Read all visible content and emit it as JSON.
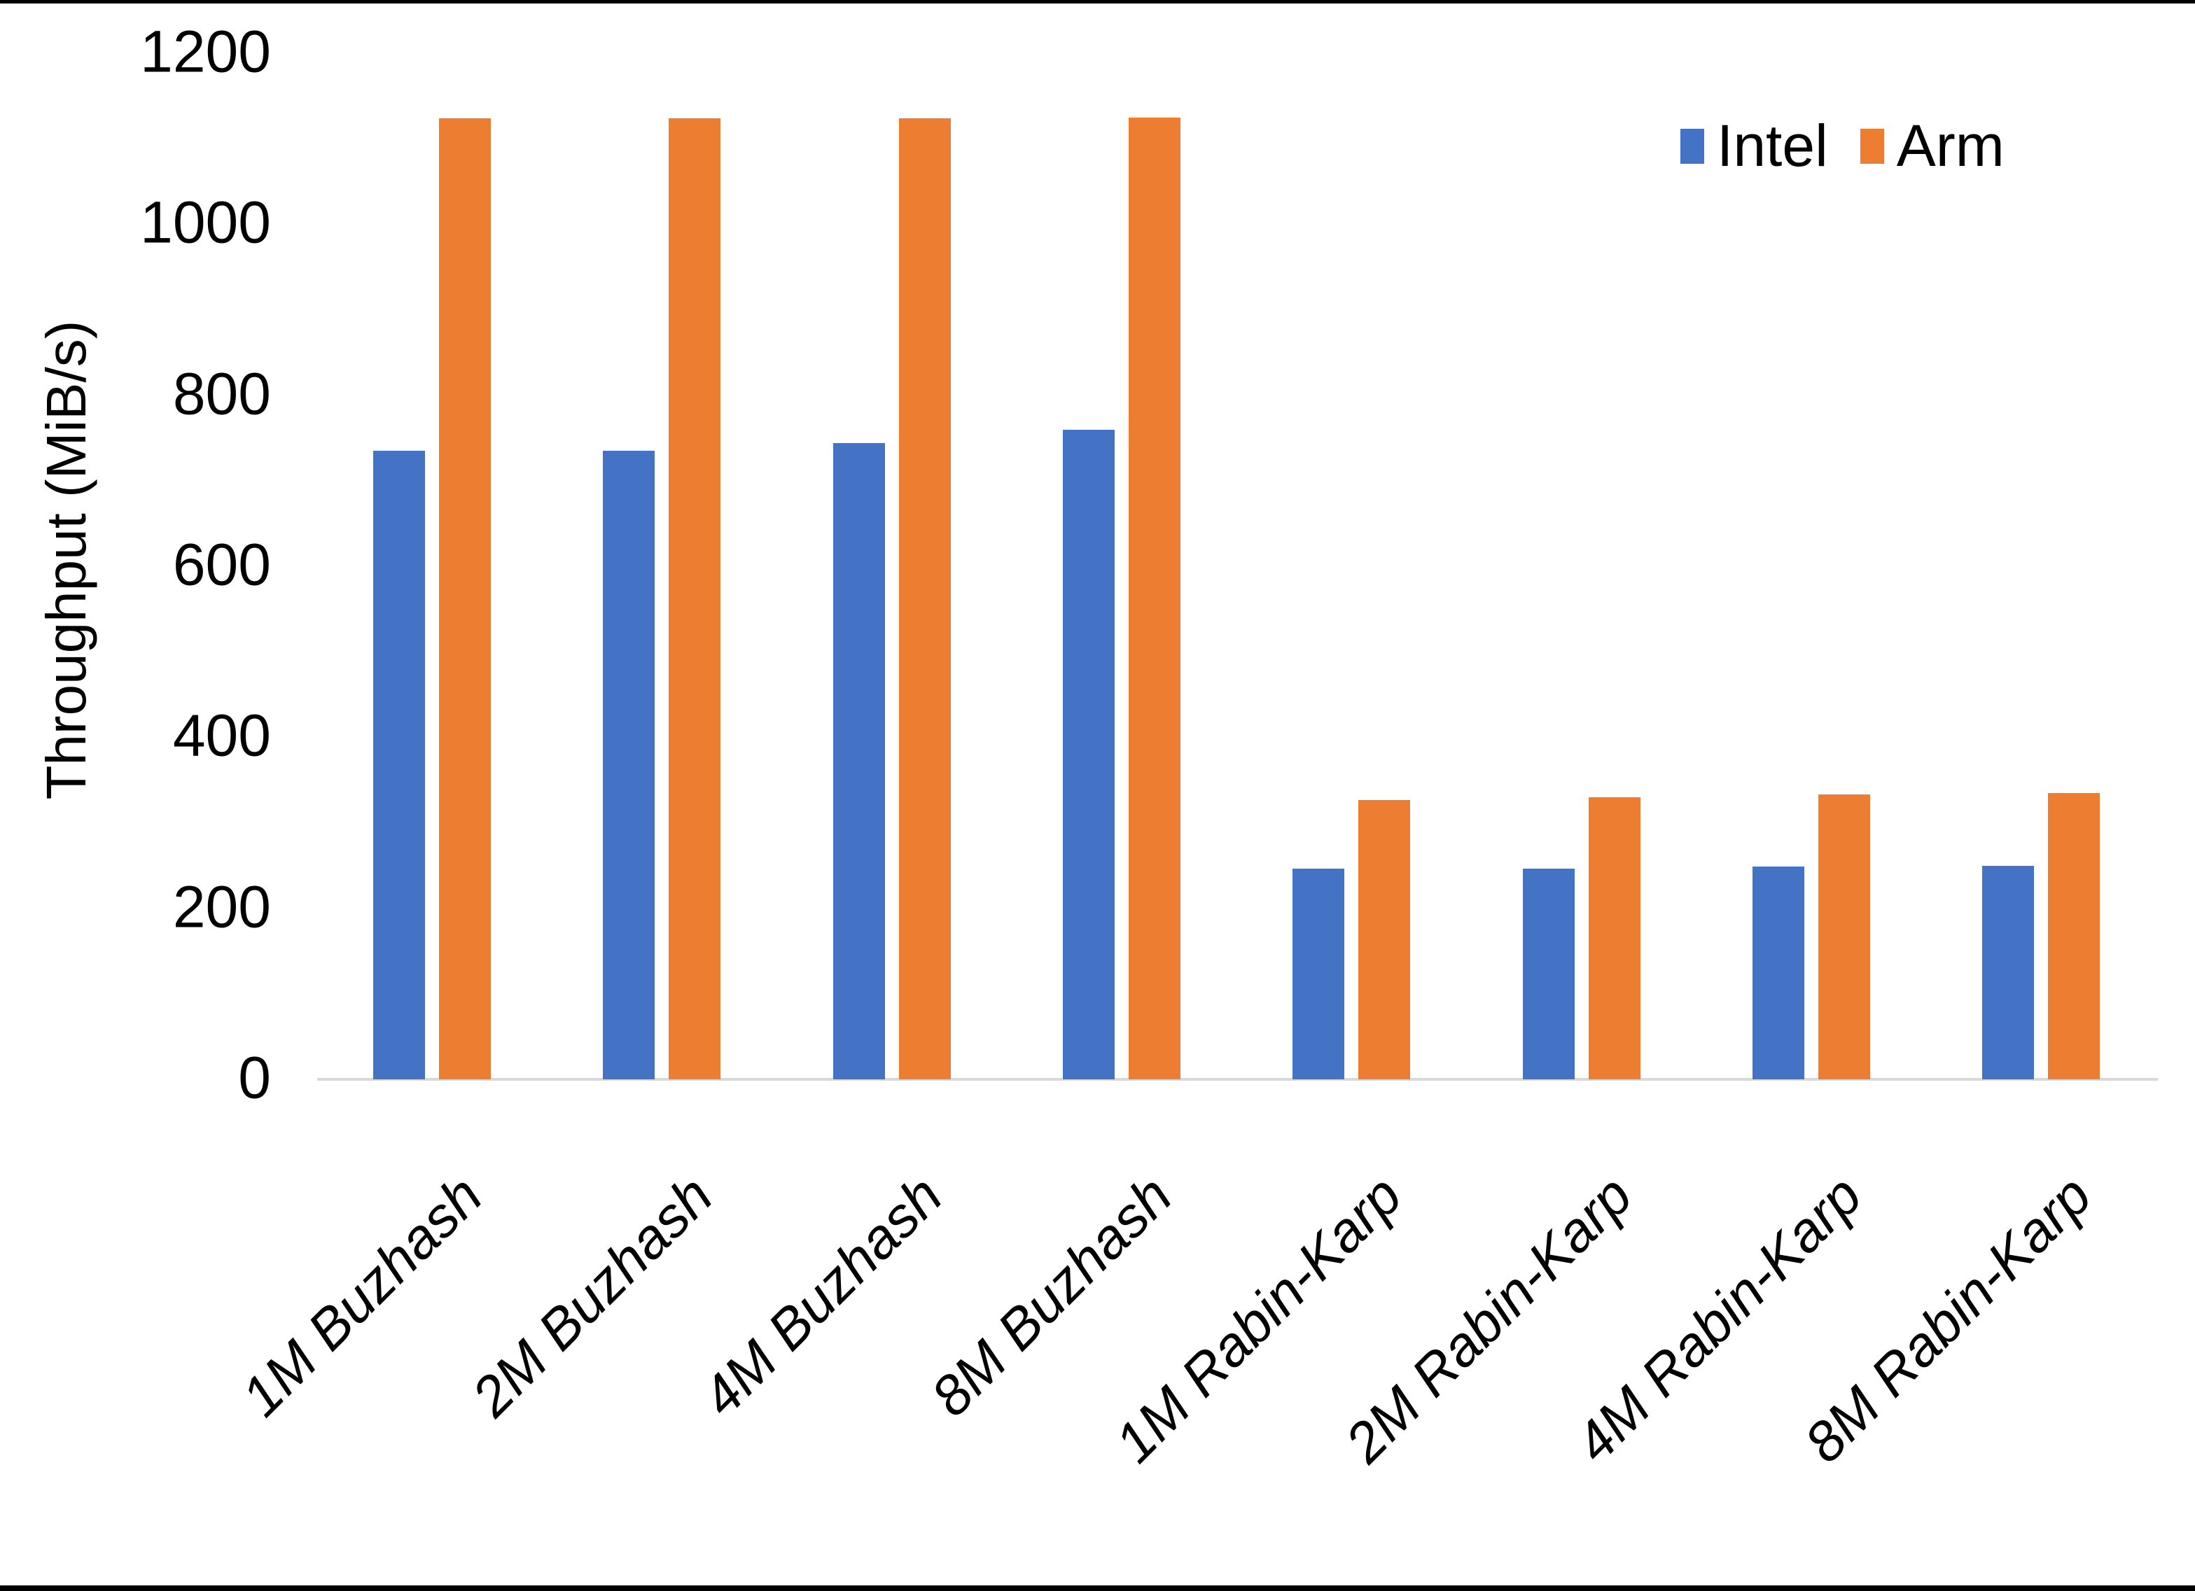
{
  "page": {
    "background": "#ffffff",
    "top_border_color": "#000000",
    "bottom_border_color": "#000000",
    "text_color": "#000000",
    "axis_line_color": "#d9d9d9"
  },
  "chart_data": {
    "type": "bar",
    "title": "",
    "xlabel": "",
    "ylabel": "Throughput (MiB/s)",
    "ylim": [
      0,
      1200
    ],
    "yticks": [
      0,
      200,
      400,
      600,
      800,
      1000,
      1200
    ],
    "grid": false,
    "legend_position": "top-right",
    "categories": [
      "1M Buzhash",
      "2M Buzhash",
      "4M Buzhash",
      "8M Buzhash",
      "1M Rabin-Karp",
      "2M Rabin-Karp",
      "4M Rabin-Karp",
      "8M Rabin-Karp"
    ],
    "series": [
      {
        "name": "Intel",
        "color": "#4472C4",
        "values": [
          735,
          735,
          744,
          760,
          246,
          246,
          249,
          250
        ]
      },
      {
        "name": "Arm",
        "color": "#ED7D31",
        "values": [
          1124,
          1124,
          1124,
          1125,
          327,
          330,
          333,
          335
        ]
      }
    ]
  }
}
